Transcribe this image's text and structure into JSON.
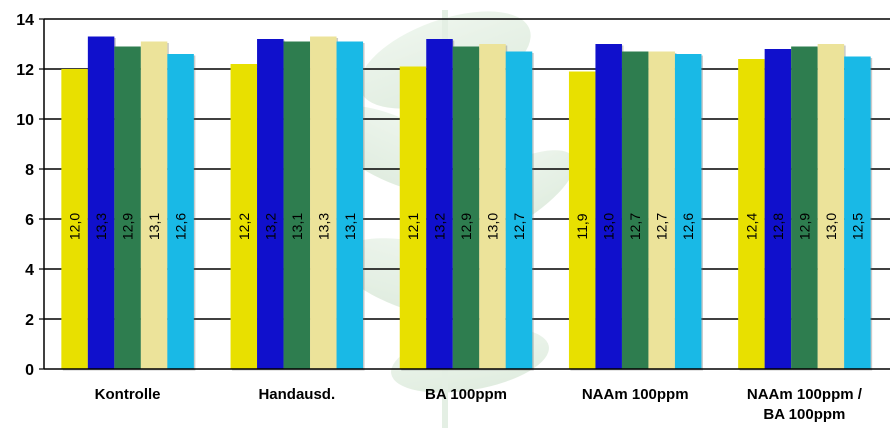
{
  "chart_data": {
    "type": "bar",
    "categories": [
      [
        "Kontrolle"
      ],
      [
        "Handausd."
      ],
      [
        "BA 100ppm"
      ],
      [
        "NAAm 100ppm"
      ],
      [
        "NAAm 100ppm /",
        "BA 100ppm"
      ]
    ],
    "series": [
      {
        "color": "#e8e000",
        "values": [
          12.0,
          12.2,
          12.1,
          11.9,
          12.4
        ],
        "labels": [
          "12,0",
          "12,2",
          "12,1",
          "11,9",
          "12,4"
        ]
      },
      {
        "color": "#1010cc",
        "values": [
          13.3,
          13.2,
          13.2,
          13.0,
          12.8
        ],
        "labels": [
          "13,3",
          "13,2",
          "13,2",
          "13,0",
          "12,8"
        ]
      },
      {
        "color": "#2e7d4f",
        "values": [
          12.9,
          13.1,
          12.9,
          12.7,
          12.9
        ],
        "labels": [
          "12,9",
          "13,1",
          "12,9",
          "12,7",
          "12,9"
        ]
      },
      {
        "color": "#ece39a",
        "values": [
          13.1,
          13.3,
          13.0,
          12.7,
          13.0
        ],
        "labels": [
          "13,1",
          "13,3",
          "13,0",
          "12,7",
          "13,0"
        ]
      },
      {
        "color": "#19b9e6",
        "values": [
          12.6,
          13.1,
          12.7,
          12.6,
          12.5
        ],
        "labels": [
          "12,6",
          "13,1",
          "12,7",
          "12,6",
          "12,5"
        ]
      }
    ],
    "ylim": [
      0,
      14
    ],
    "yticks": [
      0,
      2,
      4,
      6,
      8,
      10,
      12,
      14
    ],
    "grid": true,
    "legend": "none",
    "background_motif": "leaf-watermark"
  }
}
